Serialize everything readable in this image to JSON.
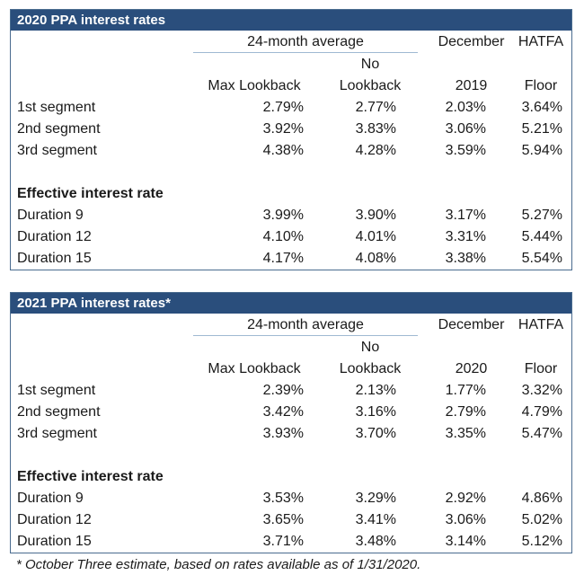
{
  "tables": [
    {
      "title": "2020 PPA interest rates",
      "header": {
        "group_label": "24-month average",
        "col1": "Max Lookback",
        "col2_top": "No",
        "col2": "Lookback",
        "col3_top": "December",
        "col3": "2019",
        "col4_top": "HATFA",
        "col4": "Floor"
      },
      "segments": [
        {
          "label": "1st segment",
          "v1": "2.79%",
          "v2": "2.77%",
          "v3": "2.03%",
          "v4": "3.64%"
        },
        {
          "label": "2nd segment",
          "v1": "3.92%",
          "v2": "3.83%",
          "v3": "3.06%",
          "v4": "5.21%"
        },
        {
          "label": "3rd segment",
          "v1": "4.38%",
          "v2": "4.28%",
          "v3": "3.59%",
          "v4": "5.94%"
        }
      ],
      "subheading": "Effective interest rate",
      "durations": [
        {
          "label": "Duration 9",
          "v1": "3.99%",
          "v2": "3.90%",
          "v3": "3.17%",
          "v4": "5.27%"
        },
        {
          "label": "Duration 12",
          "v1": "4.10%",
          "v2": "4.01%",
          "v3": "3.31%",
          "v4": "5.44%"
        },
        {
          "label": "Duration 15",
          "v1": "4.17%",
          "v2": "4.08%",
          "v3": "3.38%",
          "v4": "5.54%"
        }
      ]
    },
    {
      "title": "2021 PPA interest rates*",
      "header": {
        "group_label": "24-month average",
        "col1": "Max Lookback",
        "col2_top": "No",
        "col2": "Lookback",
        "col3_top": "December",
        "col3": "2020",
        "col4_top": "HATFA",
        "col4": "Floor"
      },
      "segments": [
        {
          "label": "1st segment",
          "v1": "2.39%",
          "v2": "2.13%",
          "v3": "1.77%",
          "v4": "3.32%"
        },
        {
          "label": "2nd segment",
          "v1": "3.42%",
          "v2": "3.16%",
          "v3": "2.79%",
          "v4": "4.79%"
        },
        {
          "label": "3rd segment",
          "v1": "3.93%",
          "v2": "3.70%",
          "v3": "3.35%",
          "v4": "5.47%"
        }
      ],
      "subheading": "Effective interest rate",
      "durations": [
        {
          "label": "Duration 9",
          "v1": "3.53%",
          "v2": "3.29%",
          "v3": "2.92%",
          "v4": "4.86%"
        },
        {
          "label": "Duration 12",
          "v1": "3.65%",
          "v2": "3.41%",
          "v3": "3.06%",
          "v4": "5.02%"
        },
        {
          "label": "Duration 15",
          "v1": "3.71%",
          "v2": "3.48%",
          "v3": "3.14%",
          "v4": "5.12%"
        }
      ]
    }
  ],
  "footnote": "* October Three estimate, based on rates available as of 1/31/2020."
}
